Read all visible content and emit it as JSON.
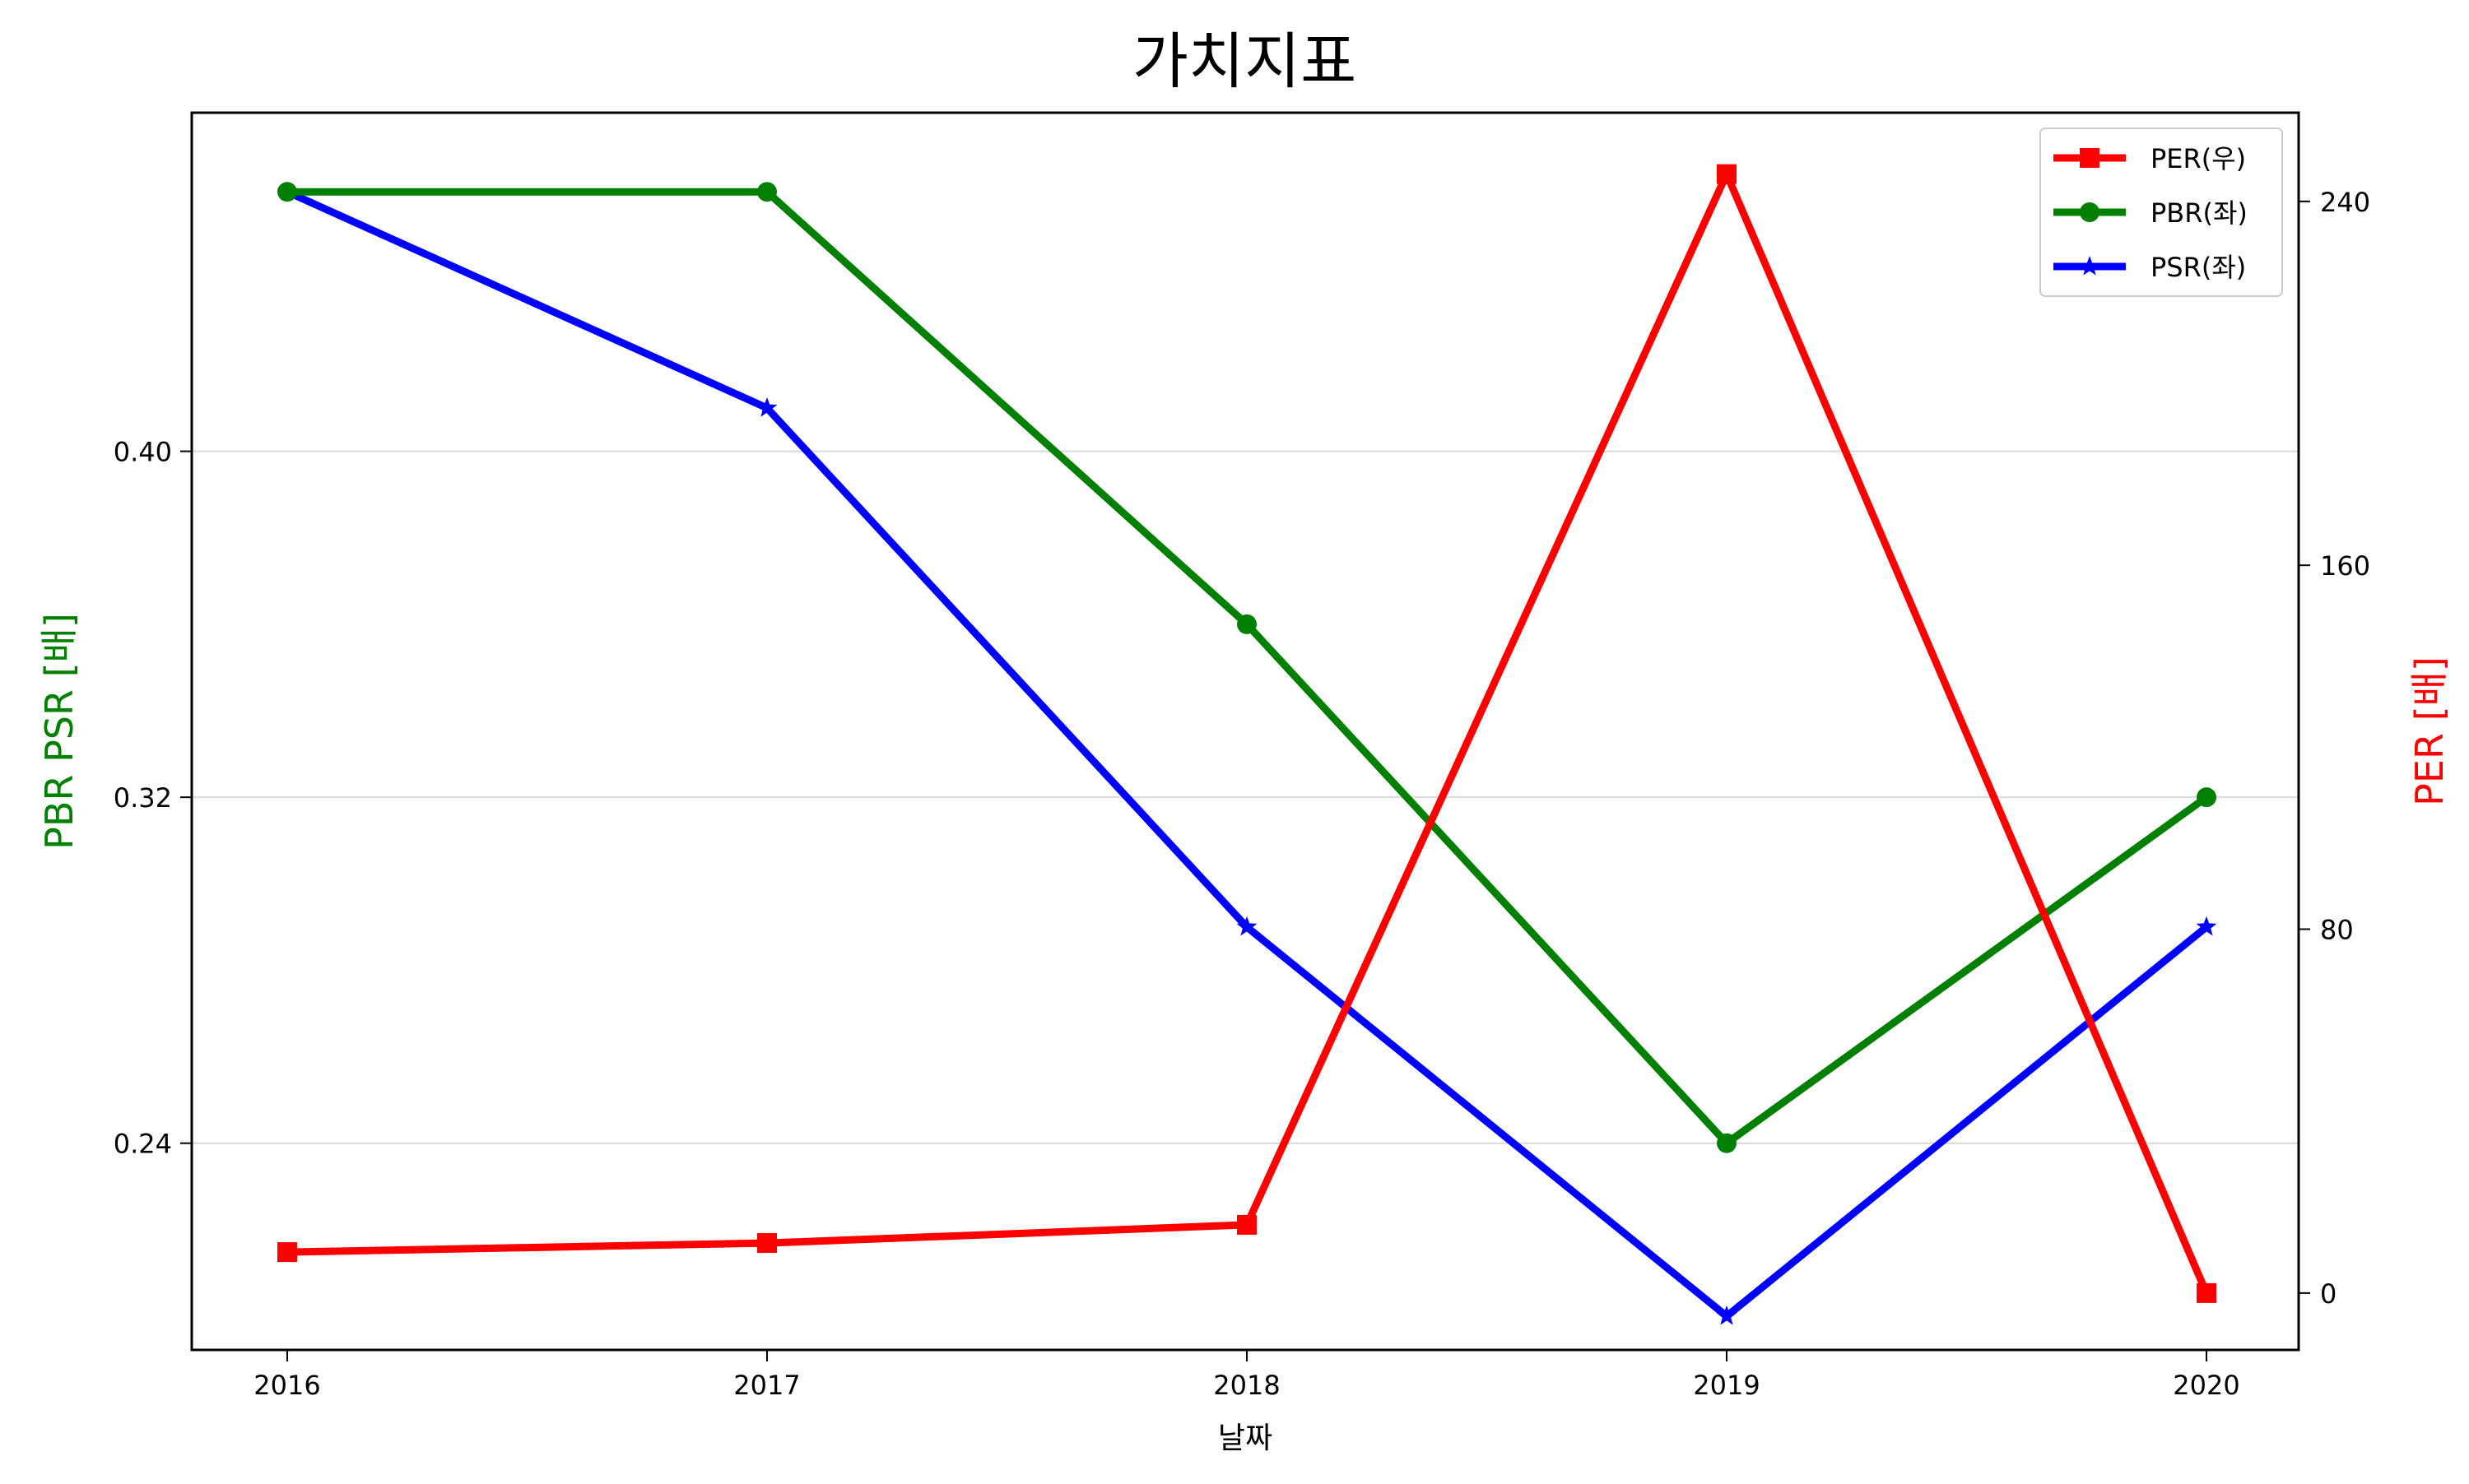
{
  "chart_data": {
    "type": "line",
    "title": "가치지표",
    "xlabel": "날짜",
    "ylabel_left": "PBR PSR [배]",
    "ylabel_right": "PER [배]",
    "categories": [
      "2016",
      "2017",
      "2018",
      "2019",
      "2020"
    ],
    "ylim_left": [
      0.1922,
      0.4783
    ],
    "yticks_left": [
      "0.24",
      "0.32",
      "0.40"
    ],
    "ylim_right": [
      -12.5,
      259.5
    ],
    "yticks_right": [
      "0",
      "80",
      "160",
      "240"
    ],
    "grid": "horizontal (left axis)",
    "legend_position": "top-right",
    "series": [
      {
        "name": "PER(우)",
        "axis": "right",
        "color": "#ff0000",
        "marker": "square",
        "values": [
          9,
          11,
          15,
          246,
          0
        ]
      },
      {
        "name": "PBR(좌)",
        "axis": "left",
        "color": "#008000",
        "marker": "circle",
        "values": [
          0.46,
          0.46,
          0.36,
          0.24,
          0.32
        ]
      },
      {
        "name": "PSR(좌)",
        "axis": "left",
        "color": "#0000ff",
        "marker": "star",
        "values": [
          0.46,
          0.41,
          0.29,
          0.2,
          0.29
        ]
      }
    ]
  }
}
